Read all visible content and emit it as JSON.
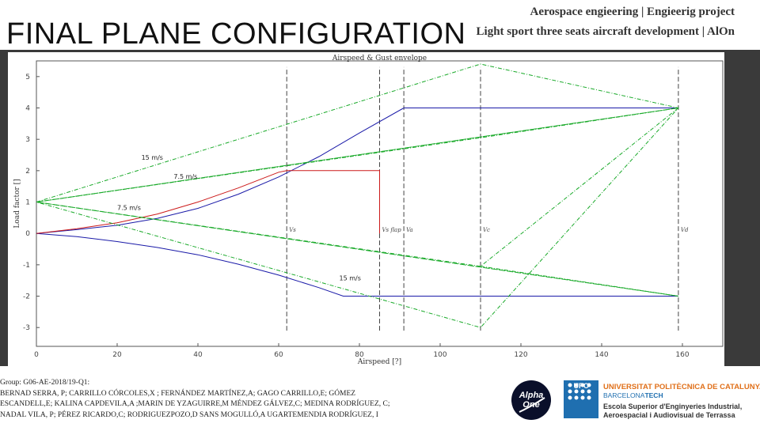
{
  "slide": {
    "title": "FINAL PLANE CONFIGURATION",
    "header_line1": "Aerospace engieering | Engieerig project",
    "header_line2": "Light sport three seats aircraft development | AlOn"
  },
  "footer": {
    "lines": [
      "Group: G06-AE-2018/19-Q1:",
      "BERNAD SERRA, P; CARRILLO CÓRCOLES,X ; FERNÁNDEZ MARTÍNEZ,A; GAGO CARRILLO,E; GÓMEZ",
      "ESCANDELL,E; KALINA CAPDEVILA,A ;MARIN DE YZAGUIRRE,M MÉNDEZ GÁLVEZ,C; MEDINA RODRÍGUEZ, C;",
      "NADAL VILA, P; PÉREZ RICARDO,C; RODRIGUEZPOZO,D SANS MOGULLÓ,A UGARTEMENDIA RODRÍGUEZ, I"
    ]
  },
  "logos": {
    "alpha_line1": "Alpha",
    "alpha_line2": "One",
    "upc_mark": "UPC",
    "upc_line1": "UNIVERSITAT POLITÈCNICA DE CATALUNYA",
    "upc_line2a": "BARCELONA",
    "upc_line2b": "TECH",
    "upc_line3": "Escola Superior d'Enginyeries Industrial,",
    "upc_line4": "Aeroespacial i Audiovisual de Terrassa"
  },
  "colors": {
    "panel": "#3a3a3a",
    "gust": "#1aaa2a",
    "clean": "#1a1aa8",
    "flap": "#cc1a1a",
    "speed_marker": "#444444",
    "alpha_logo": "#0a0f2a",
    "upc_blue": "#1f6fb0",
    "upc_orange": "#e0701a"
  },
  "chart_data": {
    "type": "line",
    "title": "Airspeed & Gust envelope",
    "xlabel": "Airspeed [?]",
    "ylabel": "Load factor []",
    "xlim": [
      0,
      170
    ],
    "ylim": [
      -3.6,
      5.5
    ],
    "xticks": [
      0,
      20,
      40,
      60,
      80,
      100,
      120,
      140,
      160
    ],
    "yticks": [
      -3,
      -2,
      -1,
      0,
      1,
      2,
      3,
      4,
      5
    ],
    "grid": false,
    "gust_labels": [
      {
        "text": "15 m/s",
        "x": 26,
        "y": 2.35
      },
      {
        "text": "7.5 m/s",
        "x": 34,
        "y": 1.75
      },
      {
        "text": "7.5 m/s",
        "x": 20,
        "y": 0.75
      },
      {
        "text": "15 m/s",
        "x": 75,
        "y": -1.5
      }
    ],
    "speed_markers": [
      {
        "label": "Vs",
        "x": 62
      },
      {
        "label": "Vs flap",
        "x": 85
      },
      {
        "label": "Va",
        "x": 91
      },
      {
        "label": "Vc",
        "x": 110
      },
      {
        "label": "Vd",
        "x": 159
      }
    ],
    "series": [
      {
        "name": "",
        "style": "clean",
        "x": [
          0,
          10,
          20,
          30,
          40,
          50,
          60,
          70,
          80,
          91,
          159
        ],
        "y": [
          0,
          0.12,
          0.26,
          0.48,
          0.8,
          1.25,
          1.8,
          2.45,
          3.2,
          4.0,
          4.0
        ]
      },
      {
        "name": "",
        "style": "clean",
        "x": [
          0,
          10,
          20,
          30,
          40,
          50,
          60,
          70,
          76,
          159
        ],
        "y": [
          0,
          -0.1,
          -0.26,
          -0.45,
          -0.68,
          -0.98,
          -1.33,
          -1.73,
          -2.0,
          -2.0
        ]
      },
      {
        "name": "",
        "style": "flap",
        "x": [
          0,
          10,
          20,
          30,
          40,
          50,
          60,
          62,
          85,
          85
        ],
        "y": [
          0,
          0.15,
          0.34,
          0.62,
          1.0,
          1.45,
          1.95,
          2.0,
          2.0,
          0
        ]
      },
      {
        "name": "",
        "style": "gust",
        "x": [
          0,
          110,
          159,
          110,
          0,
          159,
          0,
          159,
          0
        ],
        "y": [
          1,
          5.4,
          4.0,
          -3.0,
          1,
          4.0,
          1,
          -2.0,
          1
        ]
      },
      {
        "name": "",
        "style": "gust",
        "x": [
          0,
          110,
          159,
          110,
          0
        ],
        "y": [
          1,
          3.05,
          4.0,
          -1.05,
          1
        ]
      },
      {
        "name": "",
        "style": "gust",
        "x": [
          110,
          159
        ],
        "y": [
          -1.05,
          -2.0
        ]
      }
    ]
  }
}
